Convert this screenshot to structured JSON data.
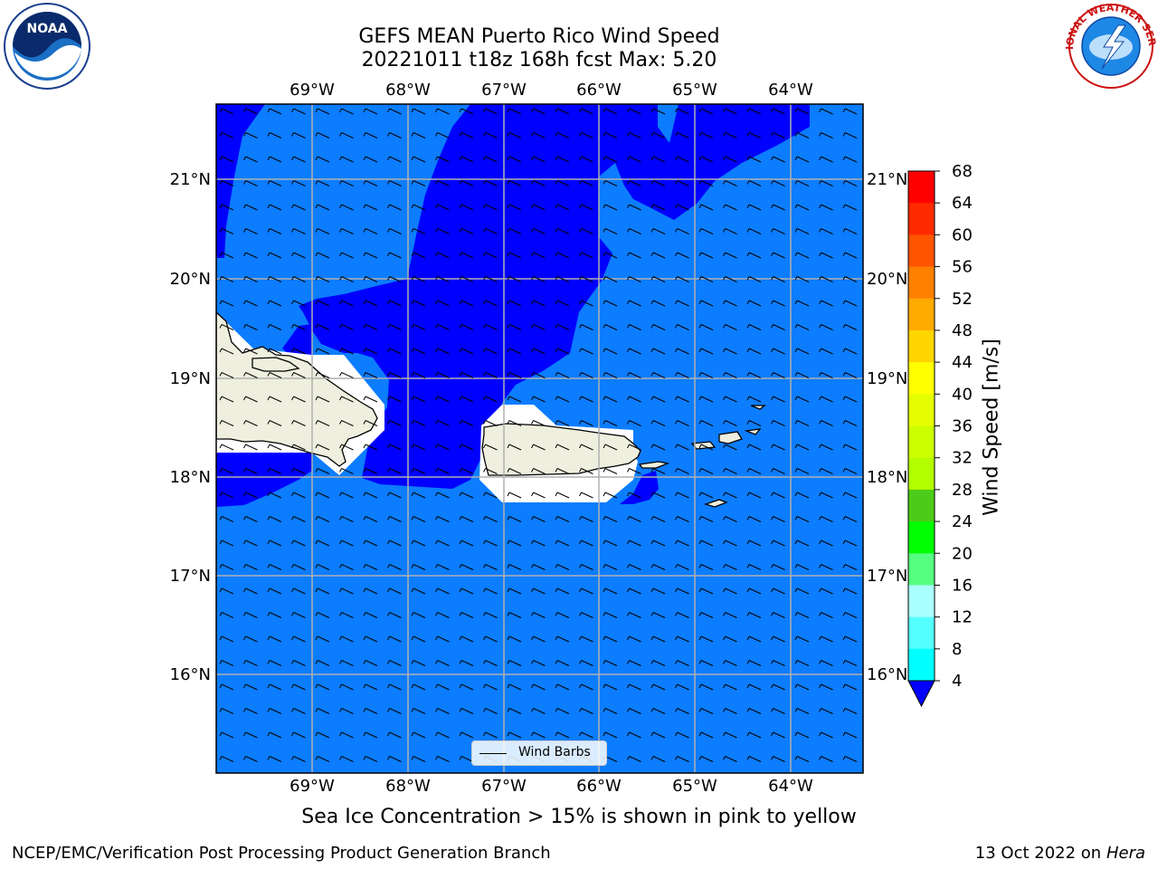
{
  "header": {
    "title_line1": "GEFS MEAN Puerto Rico Wind Speed",
    "title_line2": "20221011 t18z 168h fcst   Max: 5.20"
  },
  "map": {
    "lon_ticks": [
      "69°W",
      "68°W",
      "67°W",
      "66°W",
      "65°W",
      "64°W"
    ],
    "lat_ticks": [
      "21°N",
      "20°N",
      "19°N",
      "18°N",
      "17°N",
      "16°N"
    ],
    "colors": {
      "land": "#efefdf",
      "low_wind": "#0000ff",
      "wind_4_8": "#0c7dff",
      "no_data": "#ffffff",
      "grid": "#b0b0b0"
    },
    "legend_label": "Wind Barbs"
  },
  "colorbar": {
    "title": "Wind Speed [m/s]",
    "ticks": [
      "68",
      "64",
      "60",
      "56",
      "52",
      "48",
      "44",
      "40",
      "36",
      "32",
      "28",
      "24",
      "20",
      "16",
      "12",
      "8",
      "4"
    ],
    "colors": [
      "#ff0000",
      "#ff2a00",
      "#ff5500",
      "#ff8000",
      "#ffaa00",
      "#ffd500",
      "#ffff00",
      "#e5ff00",
      "#ccff00",
      "#b3ff00",
      "#4ccc19",
      "#00ff00",
      "#55ff80",
      "#aaffff",
      "#55ffff",
      "#00ffff",
      "#00e5ff",
      "#0c7dff"
    ],
    "under_color": "#0000ff"
  },
  "note": "Sea Ice Concentration > 15% is shown in pink to yellow",
  "footer": {
    "left": "NCEP/EMC/Verification Post Processing Product Generation Branch",
    "right_date": "13 Oct 2022 on",
    "right_machine": "Hera"
  },
  "logos": {
    "left_text": "NOAA",
    "right_text": "NATIONAL WEATHER SERVICE"
  }
}
